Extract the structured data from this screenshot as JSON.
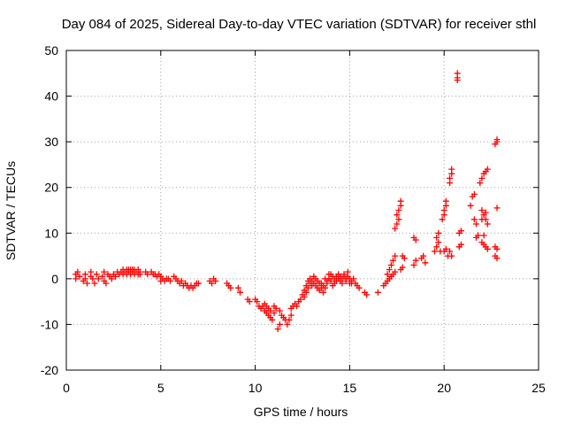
{
  "chart_data": {
    "type": "scatter",
    "title": "Day 084 of 2025, Sidereal Day-to-day VTEC variation (SDTVAR) for receiver sthl",
    "xlabel": "GPS time / hours",
    "ylabel": "SDTVAR / TECUs",
    "xlim": [
      0,
      25
    ],
    "ylim": [
      -20,
      50
    ],
    "xticks": [
      "0",
      "5",
      "10",
      "15",
      "20",
      "25"
    ],
    "yticks": [
      "-20",
      "-10",
      "0",
      "10",
      "20",
      "30",
      "40",
      "50"
    ],
    "grid": true,
    "marker": "plus",
    "series": [
      {
        "name": "SDTVAR",
        "color": "#ff0000",
        "points": [
          [
            0.5,
            1
          ],
          [
            0.5,
            0
          ],
          [
            0.6,
            1.5
          ],
          [
            0.7,
            0.5
          ],
          [
            0.9,
            -0.5
          ],
          [
            1.0,
            1
          ],
          [
            1.0,
            0
          ],
          [
            1.1,
            -1
          ],
          [
            1.3,
            1.5
          ],
          [
            1.3,
            0.5
          ],
          [
            1.4,
            0
          ],
          [
            1.5,
            -1
          ],
          [
            1.6,
            1
          ],
          [
            1.7,
            0
          ],
          [
            1.9,
            0.5
          ],
          [
            2.0,
            -0.5
          ],
          [
            2.0,
            1.5
          ],
          [
            2.1,
            -1
          ],
          [
            2.2,
            1
          ],
          [
            2.3,
            0.5
          ],
          [
            2.4,
            0
          ],
          [
            2.5,
            1
          ],
          [
            2.6,
            0.5
          ],
          [
            2.7,
            1.5
          ],
          [
            2.8,
            1
          ],
          [
            2.9,
            1.5
          ],
          [
            3.0,
            2
          ],
          [
            3.0,
            1
          ],
          [
            3.1,
            1.5
          ],
          [
            3.2,
            2
          ],
          [
            3.2,
            1
          ],
          [
            3.3,
            2
          ],
          [
            3.3,
            1.5
          ],
          [
            3.4,
            1
          ],
          [
            3.4,
            2
          ],
          [
            3.5,
            1.5
          ],
          [
            3.5,
            2
          ],
          [
            3.6,
            1
          ],
          [
            3.6,
            2
          ],
          [
            3.7,
            1.5
          ],
          [
            3.8,
            1
          ],
          [
            3.8,
            2
          ],
          [
            3.9,
            1.5
          ],
          [
            3.9,
            1
          ],
          [
            4.2,
            1.5
          ],
          [
            4.3,
            1
          ],
          [
            4.5,
            1.5
          ],
          [
            4.6,
            1
          ],
          [
            4.7,
            1
          ],
          [
            4.8,
            0.5
          ],
          [
            4.9,
            1
          ],
          [
            5.0,
            0.5
          ],
          [
            5.0,
            -0.5
          ],
          [
            5.1,
            0
          ],
          [
            5.2,
            -0.5
          ],
          [
            5.3,
            0
          ],
          [
            5.4,
            0
          ],
          [
            5.5,
            -0.5
          ],
          [
            5.7,
            0.5
          ],
          [
            5.8,
            0
          ],
          [
            5.9,
            -0.5
          ],
          [
            6.0,
            -1
          ],
          [
            6.1,
            -0.5
          ],
          [
            6.2,
            -1.5
          ],
          [
            6.3,
            -1
          ],
          [
            6.4,
            -1.5
          ],
          [
            6.5,
            -2
          ],
          [
            6.6,
            -1.5
          ],
          [
            6.7,
            -2
          ],
          [
            6.8,
            -1.5
          ],
          [
            6.9,
            -1
          ],
          [
            7.0,
            -1
          ],
          [
            7.6,
            -0.5
          ],
          [
            7.7,
            -1
          ],
          [
            7.8,
            0
          ],
          [
            7.9,
            -0.5
          ],
          [
            8.5,
            -1
          ],
          [
            8.6,
            -1.5
          ],
          [
            8.7,
            -2
          ],
          [
            9.1,
            -2
          ],
          [
            9.2,
            -3
          ],
          [
            9.6,
            -4.5
          ],
          [
            9.7,
            -5
          ],
          [
            10.0,
            -4.5
          ],
          [
            10.1,
            -5
          ],
          [
            10.2,
            -6
          ],
          [
            10.3,
            -6.5
          ],
          [
            10.4,
            -6
          ],
          [
            10.5,
            -7
          ],
          [
            10.6,
            -7.5
          ],
          [
            10.7,
            -8
          ],
          [
            10.8,
            -8.5
          ],
          [
            10.9,
            -9
          ],
          [
            10.5,
            -5.5
          ],
          [
            10.6,
            -6
          ],
          [
            10.7,
            -6.5
          ],
          [
            10.8,
            -7
          ],
          [
            11.0,
            -7.5
          ],
          [
            11.0,
            -6
          ],
          [
            11.1,
            -6.5
          ],
          [
            11.2,
            -11
          ],
          [
            11.3,
            -10
          ],
          [
            11.3,
            -7
          ],
          [
            11.4,
            -8
          ],
          [
            11.5,
            -8.5
          ],
          [
            11.6,
            -9
          ],
          [
            11.7,
            -10
          ],
          [
            11.8,
            -9
          ],
          [
            11.9,
            -8
          ],
          [
            11.9,
            -6.5
          ],
          [
            12.0,
            -6
          ],
          [
            12.1,
            -5.5
          ],
          [
            12.2,
            -6
          ],
          [
            12.3,
            -5
          ],
          [
            12.4,
            -4.5
          ],
          [
            12.5,
            -3.5
          ],
          [
            12.6,
            -4
          ],
          [
            12.6,
            -2.5
          ],
          [
            12.7,
            -3
          ],
          [
            12.7,
            -1.5
          ],
          [
            12.8,
            -2
          ],
          [
            12.8,
            -0.5
          ],
          [
            12.9,
            -1
          ],
          [
            12.9,
            0
          ],
          [
            13.0,
            -1.5
          ],
          [
            13.0,
            -0.5
          ],
          [
            13.1,
            0.5
          ],
          [
            13.1,
            -1
          ],
          [
            13.2,
            0
          ],
          [
            13.2,
            -1.5
          ],
          [
            13.3,
            -2
          ],
          [
            13.3,
            -0.5
          ],
          [
            13.4,
            -1
          ],
          [
            13.4,
            -2.5
          ],
          [
            13.5,
            -2
          ],
          [
            13.5,
            -1
          ],
          [
            13.6,
            -1.5
          ],
          [
            13.6,
            -3
          ],
          [
            13.7,
            0
          ],
          [
            13.7,
            -2
          ],
          [
            13.8,
            -1
          ],
          [
            13.8,
            -0.5
          ],
          [
            13.9,
            1
          ],
          [
            13.9,
            0
          ],
          [
            14.0,
            -0.5
          ],
          [
            14.0,
            1
          ],
          [
            14.1,
            0.5
          ],
          [
            14.1,
            -1.5
          ],
          [
            14.2,
            0
          ],
          [
            14.2,
            -1
          ],
          [
            14.3,
            0.5
          ],
          [
            14.3,
            -0.5
          ],
          [
            14.4,
            1
          ],
          [
            14.4,
            0
          ],
          [
            14.5,
            -0.5
          ],
          [
            14.5,
            0.5
          ],
          [
            14.6,
            0
          ],
          [
            14.6,
            -1
          ],
          [
            14.7,
            0.5
          ],
          [
            14.7,
            1
          ],
          [
            14.8,
            0
          ],
          [
            14.8,
            -0.5
          ],
          [
            14.9,
            0.5
          ],
          [
            14.9,
            1.5
          ],
          [
            15.0,
            0
          ],
          [
            15.0,
            -1
          ],
          [
            15.1,
            -0.5
          ],
          [
            15.1,
            -1
          ],
          [
            15.2,
            0
          ],
          [
            15.3,
            -1
          ],
          [
            15.4,
            -1.5
          ],
          [
            15.5,
            -2
          ],
          [
            15.8,
            -3
          ],
          [
            15.9,
            -3.5
          ],
          [
            16.5,
            -3
          ],
          [
            16.8,
            -1.5
          ],
          [
            16.9,
            -1
          ],
          [
            17.0,
            -0.5
          ],
          [
            17.0,
            1
          ],
          [
            17.1,
            0
          ],
          [
            17.1,
            2
          ],
          [
            17.2,
            0.5
          ],
          [
            17.2,
            3
          ],
          [
            17.3,
            1
          ],
          [
            17.3,
            4
          ],
          [
            17.4,
            1.5
          ],
          [
            17.4,
            5
          ],
          [
            17.4,
            11
          ],
          [
            17.5,
            12
          ],
          [
            17.5,
            14
          ],
          [
            17.6,
            13
          ],
          [
            17.6,
            15
          ],
          [
            17.7,
            16
          ],
          [
            17.7,
            17
          ],
          [
            17.7,
            2
          ],
          [
            17.8,
            2.5
          ],
          [
            17.8,
            5
          ],
          [
            17.9,
            4.5
          ],
          [
            18.4,
            9
          ],
          [
            18.5,
            8.5
          ],
          [
            18.4,
            3
          ],
          [
            18.5,
            4
          ],
          [
            18.8,
            4.5
          ],
          [
            18.9,
            5
          ],
          [
            19.0,
            3.5
          ],
          [
            19.5,
            6
          ],
          [
            19.6,
            7
          ],
          [
            19.6,
            9
          ],
          [
            19.7,
            10
          ],
          [
            19.7,
            8
          ],
          [
            19.8,
            6
          ],
          [
            19.9,
            13
          ],
          [
            20.0,
            14
          ],
          [
            20.0,
            15
          ],
          [
            20.1,
            16
          ],
          [
            20.1,
            17
          ],
          [
            20.0,
            6
          ],
          [
            20.1,
            6.5
          ],
          [
            20.2,
            5
          ],
          [
            20.3,
            21
          ],
          [
            20.3,
            22
          ],
          [
            20.4,
            23
          ],
          [
            20.4,
            24
          ],
          [
            20.3,
            6
          ],
          [
            20.4,
            5
          ],
          [
            20.7,
            45
          ],
          [
            20.7,
            44
          ],
          [
            20.7,
            43.5
          ],
          [
            20.8,
            10
          ],
          [
            20.9,
            10.5
          ],
          [
            20.8,
            7
          ],
          [
            20.9,
            7.5
          ],
          [
            21.4,
            16
          ],
          [
            21.5,
            18
          ],
          [
            21.6,
            18.5
          ],
          [
            21.6,
            13
          ],
          [
            21.7,
            12
          ],
          [
            21.7,
            9
          ],
          [
            21.8,
            9.5
          ],
          [
            22.0,
            13
          ],
          [
            22.0,
            15
          ],
          [
            22.1,
            14
          ],
          [
            22.2,
            14.5
          ],
          [
            22.2,
            13
          ],
          [
            22.3,
            12
          ],
          [
            22.1,
            9.5
          ],
          [
            22.0,
            8
          ],
          [
            22.1,
            7.5
          ],
          [
            22.2,
            7
          ],
          [
            22.3,
            6.5
          ],
          [
            21.9,
            21
          ],
          [
            22.0,
            22
          ],
          [
            22.1,
            23
          ],
          [
            22.2,
            23.5
          ],
          [
            22.3,
            24
          ],
          [
            22.7,
            29.5
          ],
          [
            22.8,
            30
          ],
          [
            22.8,
            30.5
          ],
          [
            22.8,
            15.5
          ],
          [
            22.7,
            7
          ],
          [
            22.8,
            6.5
          ],
          [
            22.7,
            5
          ],
          [
            22.8,
            4.5
          ]
        ]
      }
    ]
  }
}
